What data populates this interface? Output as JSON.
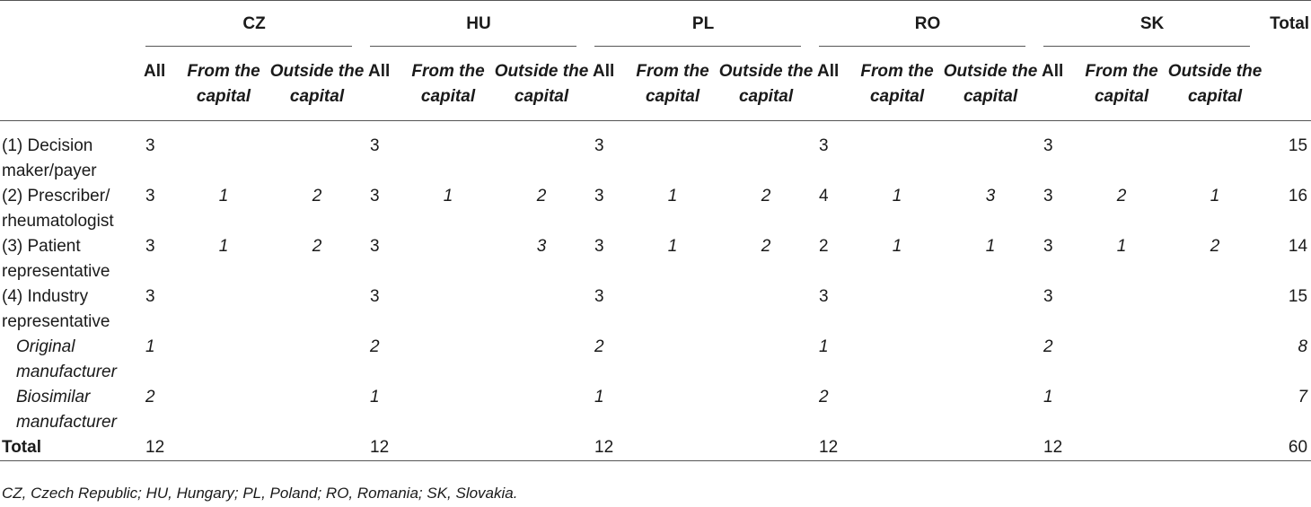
{
  "table": {
    "countries": [
      "CZ",
      "HU",
      "PL",
      "RO",
      "SK"
    ],
    "total_header": "Total",
    "sub_headers": {
      "all": "All",
      "from_capital": "From the capital",
      "outside_capital": "Outside the capital"
    },
    "rows": [
      {
        "label": "(1) Decision maker/payer",
        "style": "normal",
        "cells": [
          [
            "3",
            "",
            ""
          ],
          [
            "3",
            "",
            ""
          ],
          [
            "3",
            "",
            ""
          ],
          [
            "3",
            "",
            ""
          ],
          [
            "3",
            "",
            ""
          ]
        ],
        "total": "15"
      },
      {
        "label": "(2) Prescriber/ rheumatologist",
        "style": "normal",
        "cells": [
          [
            "3",
            "1",
            "2"
          ],
          [
            "3",
            "1",
            "2"
          ],
          [
            "3",
            "1",
            "2"
          ],
          [
            "4",
            "1",
            "3"
          ],
          [
            "3",
            "2",
            "1"
          ]
        ],
        "total": "16"
      },
      {
        "label": "(3) Patient representative",
        "style": "normal",
        "cells": [
          [
            "3",
            "1",
            "2"
          ],
          [
            "3",
            "",
            "3"
          ],
          [
            "3",
            "1",
            "2"
          ],
          [
            "2",
            "1",
            "1"
          ],
          [
            "3",
            "1",
            "2"
          ]
        ],
        "total": "14"
      },
      {
        "label": "(4) Industry representative",
        "style": "normal",
        "cells": [
          [
            "3",
            "",
            ""
          ],
          [
            "3",
            "",
            ""
          ],
          [
            "3",
            "",
            ""
          ],
          [
            "3",
            "",
            ""
          ],
          [
            "3",
            "",
            ""
          ]
        ],
        "total": "15"
      },
      {
        "label": "Original manufacturer",
        "style": "italic",
        "cells": [
          [
            "1",
            "",
            ""
          ],
          [
            "2",
            "",
            ""
          ],
          [
            "2",
            "",
            ""
          ],
          [
            "1",
            "",
            ""
          ],
          [
            "2",
            "",
            ""
          ]
        ],
        "total": "8"
      },
      {
        "label": "Biosimilar manufacturer",
        "style": "italic",
        "cells": [
          [
            "2",
            "",
            ""
          ],
          [
            "1",
            "",
            ""
          ],
          [
            "1",
            "",
            ""
          ],
          [
            "2",
            "",
            ""
          ],
          [
            "1",
            "",
            ""
          ]
        ],
        "total": "7"
      },
      {
        "label": "Total",
        "style": "bold",
        "cells": [
          [
            "12",
            "",
            ""
          ],
          [
            "12",
            "",
            ""
          ],
          [
            "12",
            "",
            ""
          ],
          [
            "12",
            "",
            ""
          ],
          [
            "12",
            "",
            ""
          ]
        ],
        "total": "60"
      }
    ]
  },
  "footnote": "CZ, Czech Republic; HU, Hungary; PL, Poland; RO, Romania; SK, Slovakia."
}
